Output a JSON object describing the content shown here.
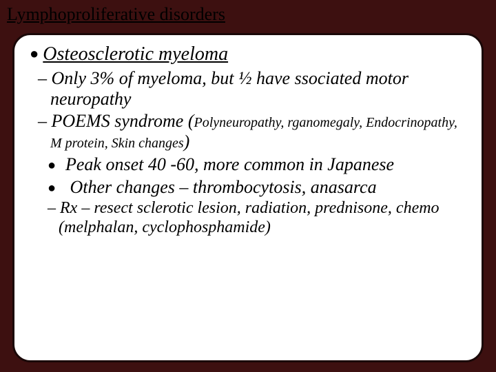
{
  "title": "Lymphoproliferative disorders",
  "heading": "Osteosclerotic myeloma",
  "point1": "Only 3% of myeloma, but ½ have ssociated motor neuropathy",
  "point2a": "POEMS syndrome (",
  "point2b": "Polyneuropathy, rganomegaly, Endocrinopathy, M protein, Skin changes",
  "point2c": ")",
  "sub1": "Peak onset 40 -60, more common in Japanese",
  "sub2a": "Other changes ",
  "sub2dash": "–",
  "sub2b": " thrombocytosis, anasarca",
  "rxA": "Rx ",
  "rxDash": "–",
  "rxB": " resect sclerotic lesion, radiation, prednisone, chemo (melphalan, cyclophosphamide)"
}
